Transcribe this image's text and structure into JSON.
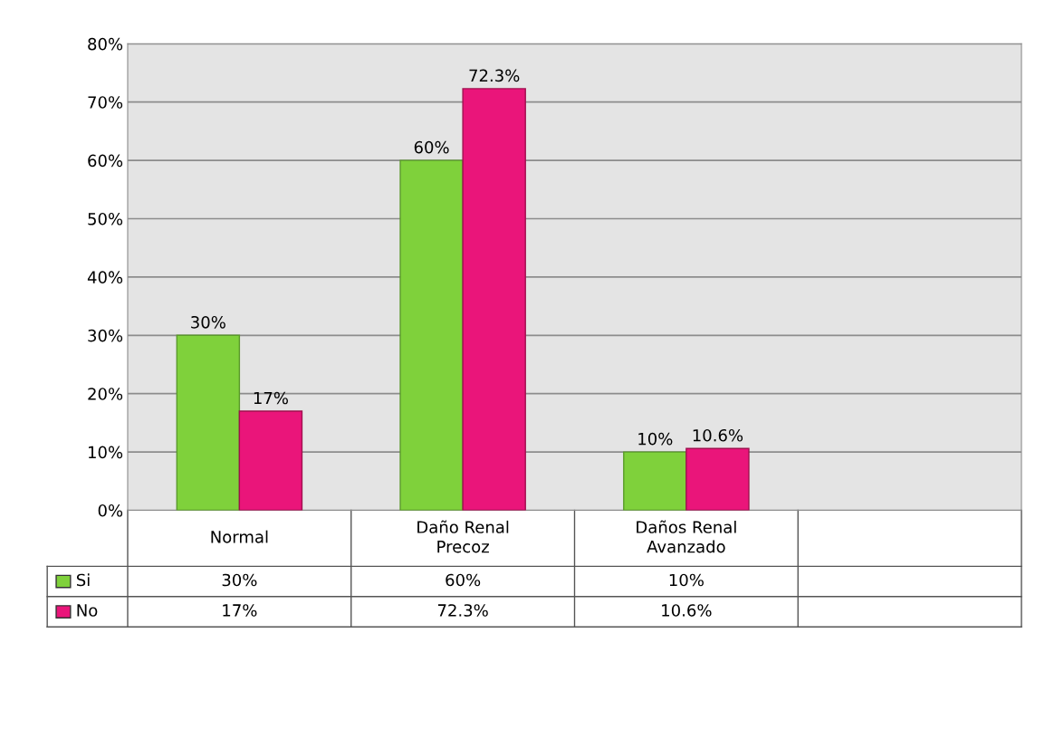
{
  "chart_data": {
    "type": "bar",
    "categories": [
      "Normal",
      "Daño Renal\nPrecoz",
      "Daños Renal\nAvanzado",
      null
    ],
    "series": [
      {
        "name": "Si",
        "color": "#7fd13b",
        "values": [
          30,
          60,
          10,
          null
        ],
        "value_labels": [
          "30%",
          "60%",
          "10%",
          null
        ]
      },
      {
        "name": "No",
        "color": "#ea157a",
        "values": [
          17,
          72.3,
          10.6,
          null
        ],
        "value_labels": [
          "17%",
          "72.3%",
          "10.6%",
          null
        ]
      }
    ],
    "ylim": [
      0,
      80
    ],
    "yticks": [
      {
        "value": 0,
        "label": "0%"
      },
      {
        "value": 10,
        "label": "10%"
      },
      {
        "value": 20,
        "label": "20%"
      },
      {
        "value": 30,
        "label": "30%"
      },
      {
        "value": 40,
        "label": "40%"
      },
      {
        "value": 50,
        "label": "50%"
      },
      {
        "value": 60,
        "label": "60%"
      },
      {
        "value": 70,
        "label": "70%"
      },
      {
        "value": 80,
        "label": "80%"
      }
    ],
    "grid": "y",
    "legend": "bottom"
  }
}
